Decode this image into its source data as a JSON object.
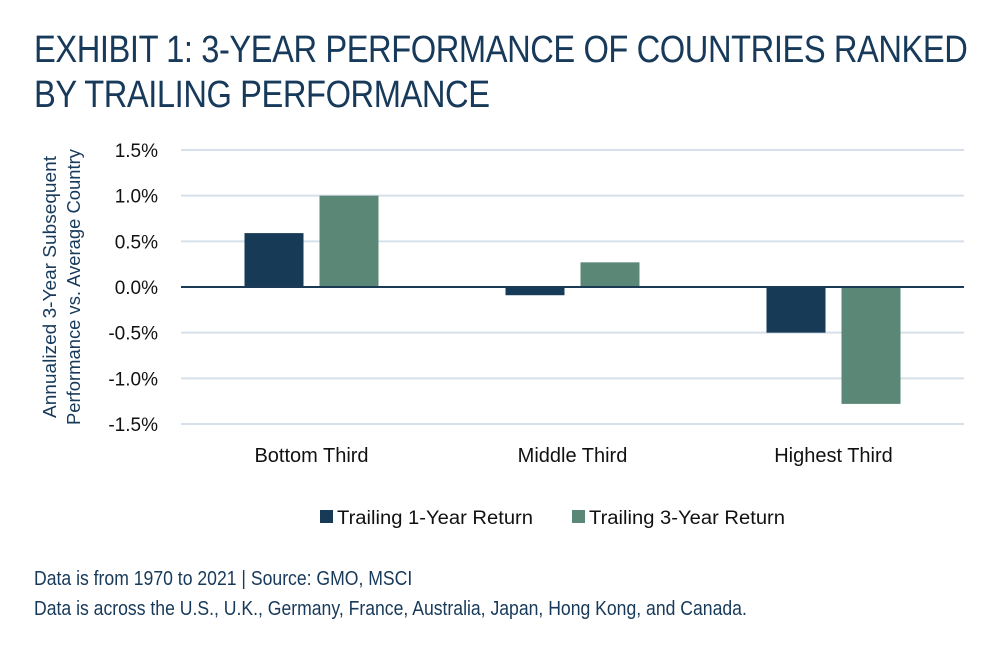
{
  "title_lines": [
    "EXHIBIT 1: 3-YEAR PERFORMANCE OF COUNTRIES RANKED",
    "BY TRAILING PERFORMANCE"
  ],
  "colors": {
    "series1": "#173a56",
    "series2": "#5b8876",
    "grid": "#d6e0ea",
    "zero": "#1a3a56",
    "text": "#17395a",
    "tick_text": "#111111"
  },
  "chart_data": {
    "type": "bar",
    "title": "EXHIBIT 1: 3-YEAR PERFORMANCE OF COUNTRIES RANKED BY TRAILING PERFORMANCE",
    "categories": [
      "Bottom Third",
      "Middle Third",
      "Highest Third"
    ],
    "series": [
      {
        "name": "Trailing 1-Year Return",
        "values": [
          0.59,
          -0.09,
          -0.5
        ]
      },
      {
        "name": "Trailing 3-Year Return",
        "values": [
          1.0,
          0.27,
          -1.28
        ]
      }
    ],
    "xlabel": "",
    "ylabel": "Annualized 3-Year Subsequent Performance vs. Average Country",
    "ylabel_lines": [
      "Annualized 3-Year Subsequent",
      "Performance vs. Average Country"
    ],
    "ylim": [
      -1.5,
      1.5
    ],
    "yticks": [
      1.5,
      1.0,
      0.5,
      0.0,
      -0.5,
      -1.0,
      -1.5
    ],
    "ytick_labels": [
      "1.5%",
      "1.0%",
      "0.5%",
      "0.0%",
      "-0.5%",
      "-1.0%",
      "-1.5%"
    ],
    "grid": true,
    "legend_position": "bottom-center",
    "unit": "%"
  },
  "footnotes": [
    "Data is from 1970 to 2021 | Source: GMO, MSCI",
    "Data is across the U.S., U.K., Germany, France, Australia, Japan, Hong Kong, and Canada."
  ]
}
